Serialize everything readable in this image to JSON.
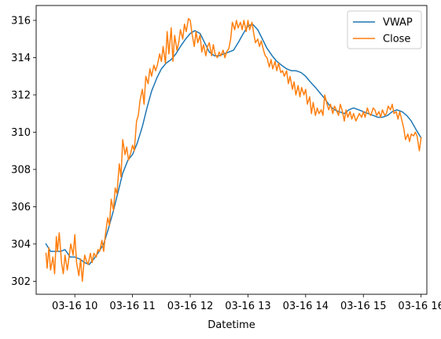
{
  "chart_data": {
    "type": "line",
    "xlabel": "Datetime",
    "ylabel": "",
    "title": "",
    "x_range_hours": [
      9.33,
      16.1
    ],
    "ylim": [
      301.3,
      316.8
    ],
    "x_ticks": [
      {
        "value": 10,
        "label": "03-16 10"
      },
      {
        "value": 11,
        "label": "03-16 11"
      },
      {
        "value": 12,
        "label": "03-16 12"
      },
      {
        "value": 13,
        "label": "03-16 13"
      },
      {
        "value": 14,
        "label": "03-16 14"
      },
      {
        "value": 15,
        "label": "03-16 15"
      },
      {
        "value": 16,
        "label": "03-16 16"
      }
    ],
    "y_ticks": [
      302,
      304,
      306,
      308,
      310,
      312,
      314,
      316
    ],
    "grid": false,
    "legend": "upper right",
    "series": [
      {
        "name": "VWAP",
        "color": "#1f77b4",
        "points": [
          [
            9.5,
            304.0
          ],
          [
            9.58,
            303.6
          ],
          [
            9.67,
            303.6
          ],
          [
            9.75,
            303.6
          ],
          [
            9.83,
            303.7
          ],
          [
            9.92,
            303.3
          ],
          [
            10.0,
            303.3
          ],
          [
            10.08,
            303.2
          ],
          [
            10.17,
            303.0
          ],
          [
            10.25,
            302.9
          ],
          [
            10.33,
            303.2
          ],
          [
            10.42,
            303.6
          ],
          [
            10.5,
            304.0
          ],
          [
            10.58,
            304.8
          ],
          [
            10.67,
            305.8
          ],
          [
            10.75,
            306.8
          ],
          [
            10.83,
            307.8
          ],
          [
            10.92,
            308.5
          ],
          [
            11.0,
            308.8
          ],
          [
            11.08,
            309.4
          ],
          [
            11.17,
            310.3
          ],
          [
            11.25,
            311.3
          ],
          [
            11.33,
            312.2
          ],
          [
            11.42,
            312.9
          ],
          [
            11.5,
            313.4
          ],
          [
            11.58,
            313.7
          ],
          [
            11.67,
            313.9
          ],
          [
            11.75,
            314.2
          ],
          [
            11.83,
            314.6
          ],
          [
            11.92,
            315.0
          ],
          [
            12.0,
            315.3
          ],
          [
            12.08,
            315.45
          ],
          [
            12.17,
            315.3
          ],
          [
            12.25,
            314.8
          ],
          [
            12.33,
            314.3
          ],
          [
            12.42,
            314.1
          ],
          [
            12.5,
            314.1
          ],
          [
            12.58,
            314.2
          ],
          [
            12.67,
            314.3
          ],
          [
            12.75,
            314.4
          ],
          [
            12.83,
            314.8
          ],
          [
            12.92,
            315.3
          ],
          [
            13.0,
            315.7
          ],
          [
            13.08,
            315.8
          ],
          [
            13.17,
            315.5
          ],
          [
            13.25,
            315.0
          ],
          [
            13.33,
            314.5
          ],
          [
            13.42,
            314.1
          ],
          [
            13.5,
            313.8
          ],
          [
            13.58,
            313.6
          ],
          [
            13.67,
            313.4
          ],
          [
            13.75,
            313.3
          ],
          [
            13.83,
            313.3
          ],
          [
            13.92,
            313.2
          ],
          [
            14.0,
            313.0
          ],
          [
            14.08,
            312.7
          ],
          [
            14.17,
            312.4
          ],
          [
            14.25,
            312.1
          ],
          [
            14.33,
            311.8
          ],
          [
            14.42,
            311.4
          ],
          [
            14.5,
            311.2
          ],
          [
            14.58,
            311.1
          ],
          [
            14.67,
            311.0
          ],
          [
            14.75,
            311.2
          ],
          [
            14.83,
            311.3
          ],
          [
            14.92,
            311.2
          ],
          [
            15.0,
            311.1
          ],
          [
            15.08,
            311.0
          ],
          [
            15.17,
            310.9
          ],
          [
            15.25,
            310.8
          ],
          [
            15.33,
            310.8
          ],
          [
            15.42,
            310.9
          ],
          [
            15.5,
            311.1
          ],
          [
            15.58,
            311.2
          ],
          [
            15.67,
            311.1
          ],
          [
            15.75,
            310.9
          ],
          [
            15.83,
            310.6
          ],
          [
            15.92,
            310.1
          ],
          [
            16.0,
            309.7
          ]
        ]
      },
      {
        "name": "Close",
        "color": "#ff7f0e",
        "points": [
          [
            9.5,
            303.5
          ],
          [
            9.52,
            302.7
          ],
          [
            9.55,
            303.8
          ],
          [
            9.58,
            302.6
          ],
          [
            9.62,
            303.3
          ],
          [
            9.65,
            302.4
          ],
          [
            9.68,
            304.4
          ],
          [
            9.7,
            303.6
          ],
          [
            9.73,
            304.6
          ],
          [
            9.77,
            303.0
          ],
          [
            9.8,
            302.4
          ],
          [
            9.83,
            303.4
          ],
          [
            9.87,
            302.6
          ],
          [
            9.9,
            303.3
          ],
          [
            9.93,
            304.0
          ],
          [
            9.97,
            303.4
          ],
          [
            10.0,
            304.5
          ],
          [
            10.03,
            303.0
          ],
          [
            10.07,
            302.3
          ],
          [
            10.1,
            303.2
          ],
          [
            10.13,
            302.0
          ],
          [
            10.17,
            303.4
          ],
          [
            10.2,
            303.1
          ],
          [
            10.23,
            302.9
          ],
          [
            10.27,
            303.5
          ],
          [
            10.3,
            303.0
          ],
          [
            10.33,
            303.5
          ],
          [
            10.37,
            303.3
          ],
          [
            10.4,
            303.7
          ],
          [
            10.43,
            303.6
          ],
          [
            10.47,
            304.2
          ],
          [
            10.5,
            303.6
          ],
          [
            10.53,
            304.5
          ],
          [
            10.57,
            305.4
          ],
          [
            10.6,
            305.0
          ],
          [
            10.63,
            306.4
          ],
          [
            10.67,
            305.8
          ],
          [
            10.7,
            307.0
          ],
          [
            10.73,
            306.7
          ],
          [
            10.77,
            308.3
          ],
          [
            10.8,
            307.6
          ],
          [
            10.83,
            309.6
          ],
          [
            10.87,
            308.8
          ],
          [
            10.9,
            309.2
          ],
          [
            10.93,
            308.5
          ],
          [
            10.97,
            308.9
          ],
          [
            11.0,
            309.3
          ],
          [
            11.03,
            309.0
          ],
          [
            11.07,
            310.6
          ],
          [
            11.1,
            310.9
          ],
          [
            11.13,
            311.7
          ],
          [
            11.17,
            312.3
          ],
          [
            11.2,
            311.5
          ],
          [
            11.23,
            313.0
          ],
          [
            11.27,
            312.6
          ],
          [
            11.3,
            313.4
          ],
          [
            11.33,
            313.0
          ],
          [
            11.37,
            313.6
          ],
          [
            11.4,
            313.3
          ],
          [
            11.43,
            313.6
          ],
          [
            11.47,
            314.2
          ],
          [
            11.5,
            313.8
          ],
          [
            11.53,
            314.6
          ],
          [
            11.57,
            313.7
          ],
          [
            11.6,
            315.4
          ],
          [
            11.63,
            314.2
          ],
          [
            11.67,
            315.6
          ],
          [
            11.7,
            313.8
          ],
          [
            11.73,
            315.2
          ],
          [
            11.77,
            314.4
          ],
          [
            11.8,
            314.8
          ],
          [
            11.83,
            315.5
          ],
          [
            11.87,
            315.0
          ],
          [
            11.9,
            315.8
          ],
          [
            11.93,
            315.4
          ],
          [
            11.97,
            316.1
          ],
          [
            12.0,
            316.0
          ],
          [
            12.03,
            315.3
          ],
          [
            12.07,
            314.6
          ],
          [
            12.1,
            315.4
          ],
          [
            12.13,
            314.8
          ],
          [
            12.17,
            315.2
          ],
          [
            12.2,
            314.3
          ],
          [
            12.23,
            314.7
          ],
          [
            12.27,
            314.1
          ],
          [
            12.3,
            314.6
          ],
          [
            12.33,
            314.8
          ],
          [
            12.37,
            314.1
          ],
          [
            12.4,
            314.7
          ],
          [
            12.43,
            314.2
          ],
          [
            12.47,
            314.0
          ],
          [
            12.5,
            314.3
          ],
          [
            12.53,
            314.1
          ],
          [
            12.57,
            314.4
          ],
          [
            12.6,
            314.0
          ],
          [
            12.63,
            314.3
          ],
          [
            12.67,
            314.5
          ],
          [
            12.7,
            315.0
          ],
          [
            12.73,
            315.9
          ],
          [
            12.77,
            315.5
          ],
          [
            12.8,
            316.0
          ],
          [
            12.83,
            315.6
          ],
          [
            12.87,
            315.9
          ],
          [
            12.9,
            315.5
          ],
          [
            12.93,
            316.0
          ],
          [
            12.97,
            315.4
          ],
          [
            13.0,
            316.0
          ],
          [
            13.03,
            315.5
          ],
          [
            13.07,
            315.9
          ],
          [
            13.1,
            315.3
          ],
          [
            13.13,
            314.8
          ],
          [
            13.17,
            315.0
          ],
          [
            13.2,
            314.6
          ],
          [
            13.23,
            314.9
          ],
          [
            13.27,
            314.4
          ],
          [
            13.3,
            314.1
          ],
          [
            13.33,
            314.0
          ],
          [
            13.37,
            313.5
          ],
          [
            13.4,
            313.9
          ],
          [
            13.43,
            313.4
          ],
          [
            13.47,
            313.8
          ],
          [
            13.5,
            313.3
          ],
          [
            13.53,
            313.7
          ],
          [
            13.57,
            313.2
          ],
          [
            13.6,
            313.3
          ],
          [
            13.63,
            313.0
          ],
          [
            13.67,
            313.3
          ],
          [
            13.7,
            312.6
          ],
          [
            13.73,
            313.0
          ],
          [
            13.77,
            312.3
          ],
          [
            13.8,
            312.7
          ],
          [
            13.83,
            312.0
          ],
          [
            13.87,
            312.5
          ],
          [
            13.9,
            311.9
          ],
          [
            13.93,
            312.4
          ],
          [
            13.97,
            312.0
          ],
          [
            14.0,
            312.3
          ],
          [
            14.03,
            311.5
          ],
          [
            14.07,
            311.9
          ],
          [
            14.1,
            311.0
          ],
          [
            14.13,
            311.6
          ],
          [
            14.17,
            310.9
          ],
          [
            14.2,
            311.3
          ],
          [
            14.23,
            311.0
          ],
          [
            14.27,
            311.2
          ],
          [
            14.3,
            310.9
          ],
          [
            14.33,
            312.0
          ],
          [
            14.37,
            311.5
          ],
          [
            14.4,
            311.2
          ],
          [
            14.43,
            311.5
          ],
          [
            14.47,
            311.0
          ],
          [
            14.5,
            311.4
          ],
          [
            14.53,
            311.2
          ],
          [
            14.57,
            310.9
          ],
          [
            14.6,
            311.5
          ],
          [
            14.63,
            311.2
          ],
          [
            14.67,
            310.6
          ],
          [
            14.7,
            311.2
          ],
          [
            14.73,
            310.8
          ],
          [
            14.77,
            311.1
          ],
          [
            14.8,
            310.7
          ],
          [
            14.83,
            311.0
          ],
          [
            14.87,
            310.6
          ],
          [
            14.9,
            310.8
          ],
          [
            14.93,
            311.0
          ],
          [
            14.97,
            310.8
          ],
          [
            15.0,
            311.1
          ],
          [
            15.03,
            310.8
          ],
          [
            15.07,
            311.3
          ],
          [
            15.1,
            311.0
          ],
          [
            15.13,
            310.9
          ],
          [
            15.17,
            311.3
          ],
          [
            15.2,
            311.2
          ],
          [
            15.23,
            310.9
          ],
          [
            15.27,
            311.1
          ],
          [
            15.3,
            310.8
          ],
          [
            15.33,
            311.2
          ],
          [
            15.37,
            310.9
          ],
          [
            15.4,
            311.0
          ],
          [
            15.43,
            311.4
          ],
          [
            15.47,
            311.2
          ],
          [
            15.5,
            311.5
          ],
          [
            15.53,
            311.0
          ],
          [
            15.57,
            311.1
          ],
          [
            15.6,
            310.7
          ],
          [
            15.63,
            311.1
          ],
          [
            15.67,
            310.6
          ],
          [
            15.7,
            310.2
          ],
          [
            15.73,
            309.6
          ],
          [
            15.77,
            309.9
          ],
          [
            15.8,
            309.5
          ],
          [
            15.83,
            309.9
          ],
          [
            15.87,
            309.8
          ],
          [
            15.9,
            310.0
          ],
          [
            15.93,
            309.8
          ],
          [
            15.97,
            309.0
          ],
          [
            16.0,
            309.7
          ]
        ]
      }
    ]
  }
}
